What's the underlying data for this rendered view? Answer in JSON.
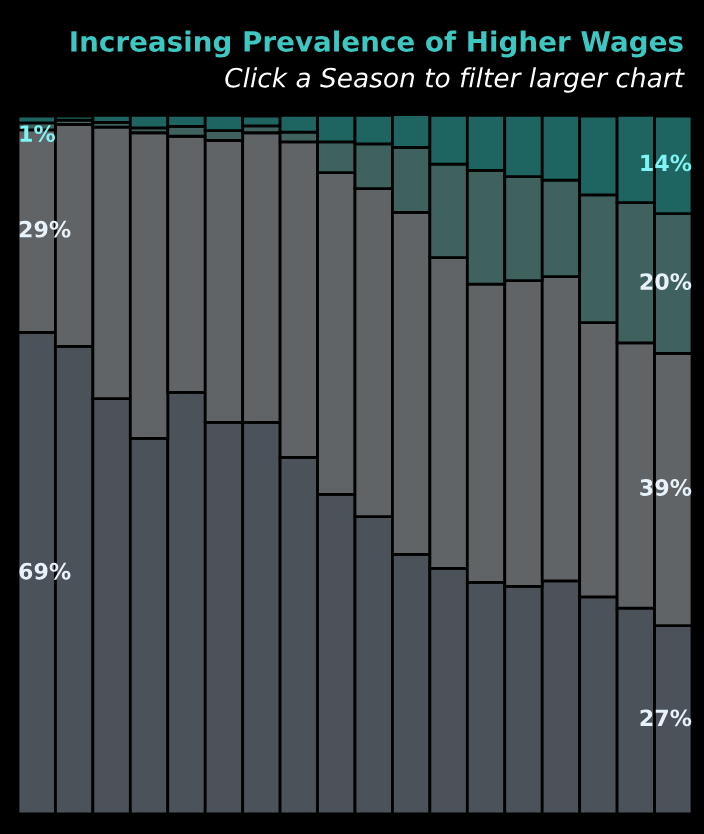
{
  "chart_data": {
    "type": "bar",
    "stacked": true,
    "title": "Increasing Prevalence of Higher Wages",
    "subtitle": "Click a Season to filter larger chart",
    "categories": [
      null,
      null,
      null,
      null,
      null,
      null,
      null,
      null,
      null,
      null,
      null,
      null,
      null,
      null,
      null,
      null,
      null,
      null
    ],
    "ylim": [
      0,
      100
    ],
    "grid": false,
    "legend": false,
    "series": [
      {
        "color": "#4b525a",
        "values": [
          69,
          67.0,
          59.5,
          53.8,
          60.4,
          56.1,
          56.1,
          51.1,
          45.8,
          42.6,
          37.2,
          35.2,
          33.2,
          32.6,
          33.4,
          31.1,
          29.5,
          27
        ],
        "value_labels": [
          "69%",
          null,
          null,
          null,
          null,
          null,
          null,
          null,
          null,
          null,
          null,
          null,
          null,
          null,
          null,
          null,
          null,
          "27%"
        ]
      },
      {
        "color": "#606467",
        "values": [
          29,
          31.8,
          38.9,
          43.8,
          36.7,
          40.4,
          41.5,
          45.2,
          46.1,
          47.0,
          49.0,
          44.5,
          42.7,
          43.8,
          43.6,
          39.3,
          38.0,
          39
        ],
        "value_labels": [
          "29%",
          null,
          null,
          null,
          null,
          null,
          null,
          null,
          null,
          null,
          null,
          null,
          null,
          null,
          null,
          null,
          null,
          "39%"
        ]
      },
      {
        "color": "#40625f",
        "values": [
          1,
          0.6,
          0.7,
          0.7,
          1.4,
          1.4,
          1.0,
          1.4,
          4.4,
          6.4,
          9.3,
          13.4,
          16.3,
          14.9,
          13.8,
          18.3,
          20.1,
          20
        ],
        "value_labels": [
          null,
          null,
          null,
          null,
          null,
          null,
          null,
          null,
          null,
          null,
          null,
          null,
          null,
          null,
          null,
          null,
          null,
          "20%"
        ]
      },
      {
        "color": "#1e6460",
        "values": [
          1,
          0.6,
          1.0,
          1.8,
          1.6,
          2.2,
          1.4,
          2.4,
          3.8,
          4.1,
          4.7,
          7.0,
          7.9,
          8.8,
          9.3,
          11.3,
          12.5,
          14
        ],
        "value_labels": [
          "1%",
          null,
          null,
          null,
          null,
          null,
          null,
          null,
          null,
          null,
          null,
          null,
          null,
          null,
          null,
          null,
          null,
          "14%"
        ]
      }
    ]
  }
}
